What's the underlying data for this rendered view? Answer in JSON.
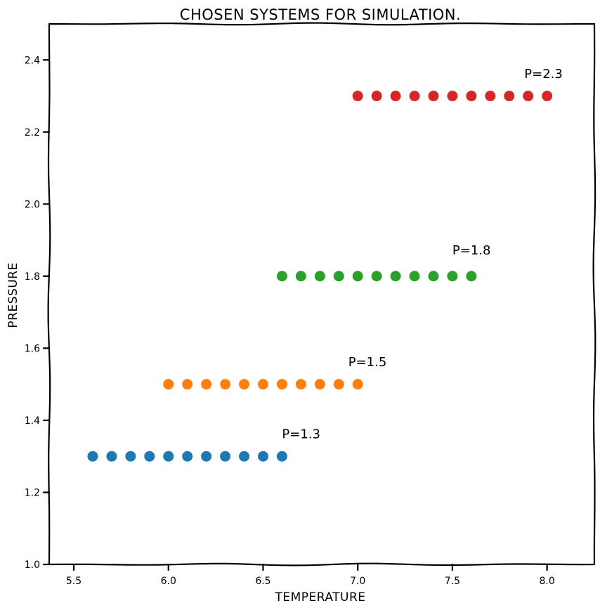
{
  "chart_data": {
    "type": "scatter",
    "title": "CHOSEN SYSTEMS FOR SIMULATION.",
    "xlabel": "TEMPERATURE",
    "ylabel": "PRESSURE",
    "xlim": [
      5.37,
      8.25
    ],
    "ylim": [
      1.0,
      2.5
    ],
    "xticks": [
      "5.5",
      "6.0",
      "6.5",
      "7.0",
      "7.5",
      "8.0"
    ],
    "yticks": [
      "1.0",
      "1.2",
      "1.4",
      "1.6",
      "1.8",
      "2.0",
      "2.2",
      "2.4"
    ],
    "grid": false,
    "series": [
      {
        "pressure": 1.3,
        "color": "#1f77b4",
        "x": [
          5.6,
          5.7,
          5.8,
          5.9,
          6.0,
          6.1,
          6.2,
          6.3,
          6.4,
          6.5,
          6.6
        ],
        "annotation": {
          "text": "P=1.3",
          "x": 6.6,
          "y": 1.35
        }
      },
      {
        "pressure": 1.5,
        "color": "#ff7f0e",
        "x": [
          6.0,
          6.1,
          6.2,
          6.3,
          6.4,
          6.5,
          6.6,
          6.7,
          6.8,
          6.9,
          7.0
        ],
        "annotation": {
          "text": "P=1.5",
          "x": 6.95,
          "y": 1.55
        }
      },
      {
        "pressure": 1.8,
        "color": "#2ca02c",
        "x": [
          6.6,
          6.7,
          6.8,
          6.9,
          7.0,
          7.1,
          7.2,
          7.3,
          7.4,
          7.5,
          7.6
        ],
        "annotation": {
          "text": "P=1.8",
          "x": 7.5,
          "y": 1.86
        }
      },
      {
        "pressure": 2.3,
        "color": "#d62728",
        "x": [
          7.0,
          7.1,
          7.2,
          7.3,
          7.4,
          7.5,
          7.6,
          7.7,
          7.8,
          7.9,
          8.0
        ],
        "annotation": {
          "text": "P=2.3",
          "x": 7.88,
          "y": 2.35
        }
      }
    ]
  }
}
